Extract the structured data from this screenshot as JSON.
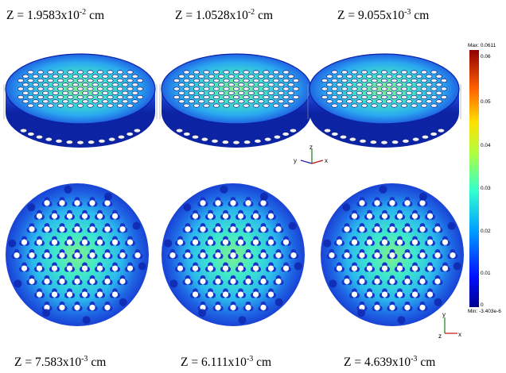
{
  "captions_top": [
    {
      "prefix": "Z = 1.9583x10",
      "exp": "-2",
      "suffix": " cm"
    },
    {
      "prefix": "Z = 1.0528x10",
      "exp": "-2",
      "suffix": " cm"
    },
    {
      "prefix": "Z = 9.055x10",
      "exp": "-3",
      "suffix": " cm"
    }
  ],
  "captions_bottom": [
    {
      "prefix": "Z = 7.583x10",
      "exp": "-3",
      "suffix": " cm"
    },
    {
      "prefix": "Z = 6.111x10",
      "exp": "-3",
      "suffix": " cm"
    },
    {
      "prefix": "Z = 4.639x10",
      "exp": "-3",
      "suffix": " cm"
    }
  ],
  "colorbar": {
    "max_label": "Max: 0.0611",
    "min_label": "Min: -3.403e-6",
    "ticks": [
      "0.06",
      "0.05",
      "0.04",
      "0.03",
      "0.02",
      "0.01",
      "0"
    ]
  },
  "axes_triad_top": {
    "x": "x",
    "y": "y",
    "z": "z"
  },
  "axes_triad_bottom": {
    "x": "x",
    "y": "y",
    "z": "z"
  },
  "colors": {
    "body_blue": "#1a3fd6",
    "body_blue_dark": "#0b22a8",
    "hot_cyan": "#2ee0d8",
    "hot_green": "#7cf08a",
    "hole_white": "#f4f4f4"
  }
}
